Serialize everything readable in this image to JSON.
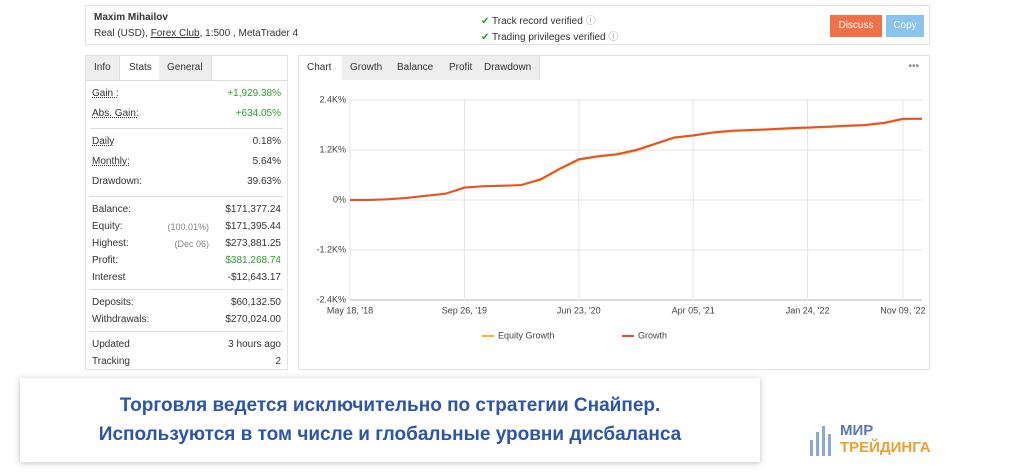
{
  "header": {
    "name": "Maxim Mihailov",
    "account": "Real (USD),",
    "broker": "Forex Club",
    "details": ", 1:500 , MetaTrader 4",
    "verified": [
      "Track record verified",
      "Trading privileges verified"
    ],
    "buttons": [
      "Discuss",
      "Copy"
    ]
  },
  "stats": {
    "tabs": [
      "Info",
      "Stats",
      "General"
    ],
    "groups": [
      [
        {
          "label": "Gain :",
          "value": "+1,929.38%",
          "color": "#2aa02a"
        },
        {
          "label": "Abs. Gain:",
          "value": "+634.05%",
          "color": "#2aa02a"
        }
      ],
      [
        {
          "label": "Daily",
          "value": "0.18%"
        },
        {
          "label": "Monthly:",
          "value": "5.64%"
        },
        {
          "label": "Drawdown:",
          "value": "39.63%"
        }
      ],
      [
        {
          "label": "Balance:",
          "value": "$171,377.24"
        },
        {
          "label": "Equity:",
          "note": "(100.01%)",
          "value": "$171,395.44"
        },
        {
          "label": "Highest:",
          "note": "(Dec 06)",
          "value": "$273,881.25"
        },
        {
          "label": "Profit:",
          "value": "$381,268.74",
          "color": "#2aa02a"
        },
        {
          "label": "Interest",
          "value": "-$12,643.17"
        }
      ],
      [
        {
          "label": "Deposits:",
          "value": "$60,132.50"
        },
        {
          "label": "Withdrawals:",
          "value": "$270,024.00"
        }
      ],
      [
        {
          "label": "Updated",
          "value": "3 hours ago"
        },
        {
          "label": "Tracking",
          "value": "2"
        }
      ]
    ]
  },
  "chart_tabs": [
    "Chart",
    "Growth",
    "Balance",
    "Profit",
    "Drawdown"
  ],
  "menu": "•••",
  "chart_data": {
    "type": "line",
    "categories": [
      "May 18, '18",
      null,
      null,
      null,
      null,
      null,
      "Sep 26, '19",
      null,
      null,
      null,
      null,
      null,
      "Jun 23, '20",
      null,
      null,
      null,
      null,
      null,
      "Apr 05, '21",
      null,
      null,
      null,
      null,
      null,
      "Jan 24, '22",
      null,
      null,
      null,
      null,
      "Nov 09, '22",
      null
    ],
    "series": [
      {
        "name": "Equity Growth",
        "color": "#f5b82e",
        "values": [
          0,
          0,
          20,
          50,
          100,
          150,
          290,
          330,
          340,
          360,
          480,
          740,
          960,
          1040,
          1090,
          1180,
          1340,
          1490,
          1540,
          1610,
          1650,
          1670,
          1690,
          1710,
          1730,
          1750,
          1770,
          1790,
          1840,
          1940,
          1950
        ]
      },
      {
        "name": "Growth",
        "color": "#e8502a",
        "values": [
          0,
          0,
          20,
          50,
          100,
          150,
          300,
          330,
          340,
          360,
          500,
          750,
          980,
          1050,
          1100,
          1200,
          1350,
          1500,
          1550,
          1620,
          1660,
          1680,
          1700,
          1720,
          1740,
          1760,
          1780,
          1800,
          1850,
          1950,
          1950
        ]
      }
    ],
    "ylim": [
      -2400,
      2400
    ],
    "yticks": [
      {
        "value": 2400,
        "label": "2.4K%"
      },
      {
        "value": 1200,
        "label": "1.2K%"
      },
      {
        "value": 0,
        "label": "0%"
      },
      {
        "value": -1200,
        "label": "-1.2K%"
      },
      {
        "value": -2400,
        "label": "-2.4K%"
      }
    ],
    "grid": true
  },
  "banner": [
    "Торговля ведется исключительно по стратегии Снайпер.",
    "Используются в том числе и глобальные уровни дисбаланса"
  ],
  "logo": [
    "МИР",
    "ТРЕЙДИНГА"
  ]
}
